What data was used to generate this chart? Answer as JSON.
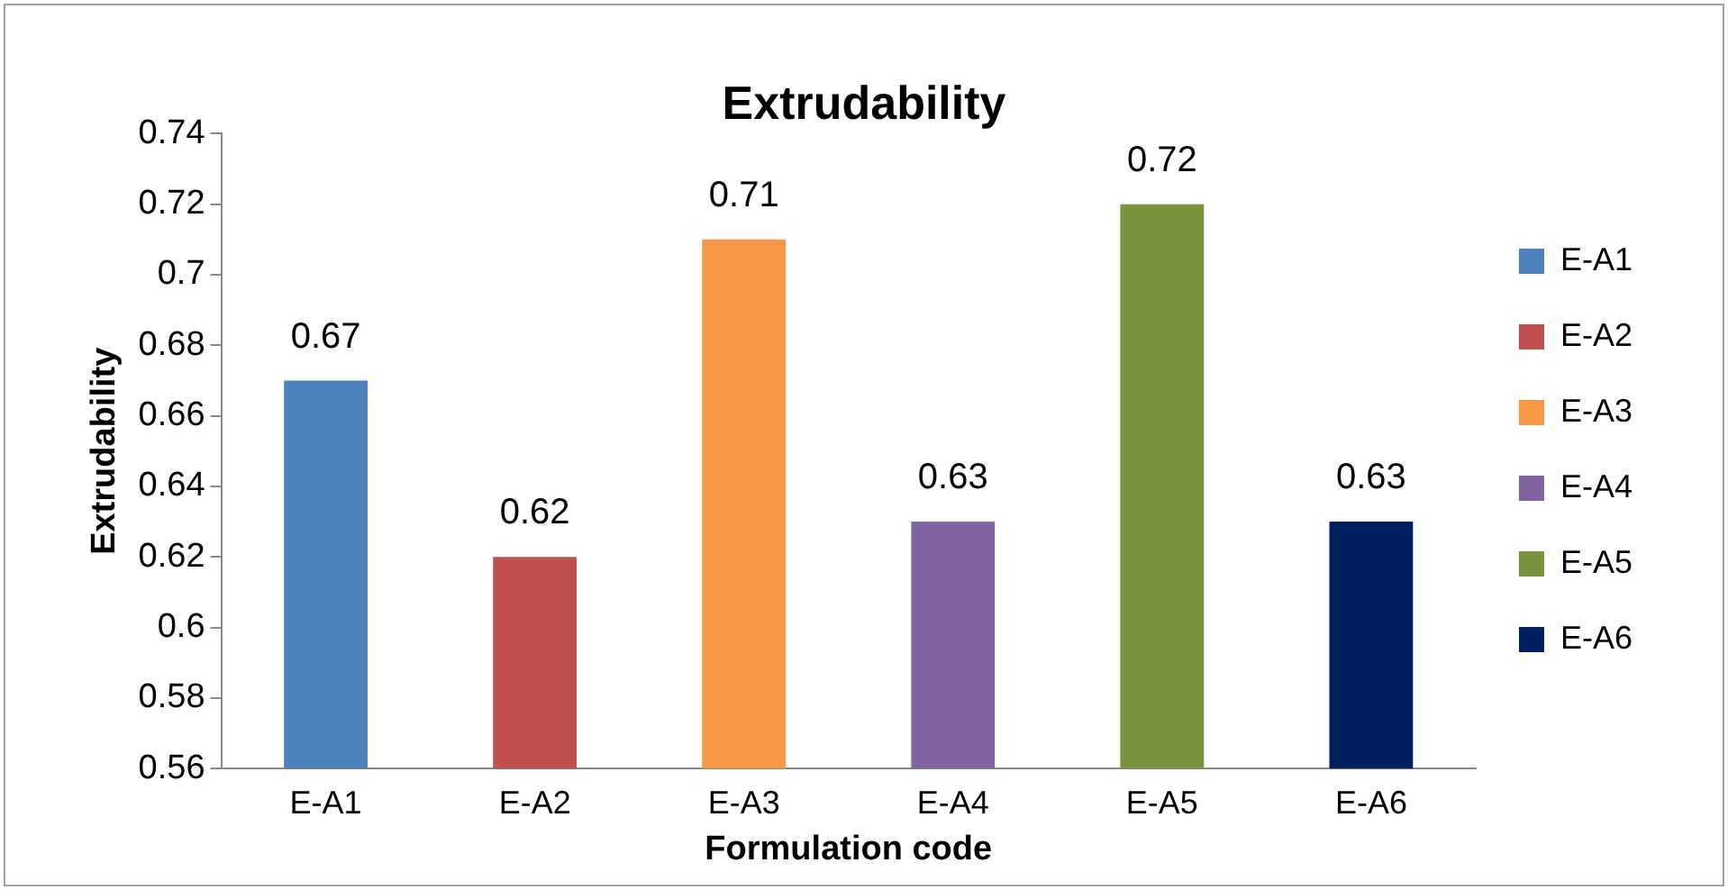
{
  "chart_data": {
    "type": "bar",
    "title": "Extrudability",
    "xlabel": "Formulation code",
    "ylabel": "Extrudability",
    "categories": [
      "E-A1",
      "E-A2",
      "E-A3",
      "E-A4",
      "E-A5",
      "E-A6"
    ],
    "series": [
      {
        "name": "E-A1",
        "color": "#4f81bd",
        "values": [
          0.67,
          null,
          null,
          null,
          null,
          null
        ]
      },
      {
        "name": "E-A2",
        "color": "#c0504d",
        "values": [
          null,
          0.62,
          null,
          null,
          null,
          null
        ]
      },
      {
        "name": "E-A3",
        "color": "#f79646",
        "values": [
          null,
          null,
          0.71,
          null,
          null,
          null
        ]
      },
      {
        "name": "E-A4",
        "color": "#8064a2",
        "values": [
          null,
          null,
          null,
          0.63,
          null,
          null
        ]
      },
      {
        "name": "E-A5",
        "color": "#77933c",
        "values": [
          null,
          null,
          null,
          null,
          0.72,
          null
        ]
      },
      {
        "name": "E-A6",
        "color": "#002060",
        "values": [
          null,
          null,
          null,
          null,
          null,
          0.63
        ]
      }
    ],
    "ylim": [
      0.56,
      0.74
    ],
    "yticks": [
      0.56,
      0.58,
      0.6,
      0.62,
      0.64,
      0.66,
      0.68,
      0.7,
      0.72,
      0.74
    ],
    "data_labels": true,
    "grid": false,
    "legend": "right"
  }
}
